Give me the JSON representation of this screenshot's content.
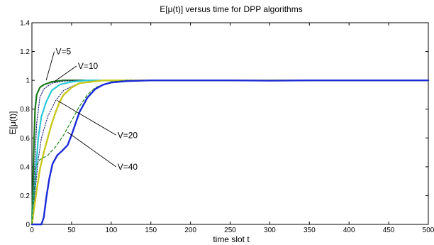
{
  "chart_data": {
    "type": "line",
    "title": "E[μ(t)] versus time for DPP algorithms",
    "xlabel": "time slot t",
    "ylabel": "E[μ(t)]",
    "xlim": [
      0,
      500
    ],
    "ylim": [
      0,
      1.4
    ],
    "xticks": [
      0,
      50,
      100,
      150,
      200,
      250,
      300,
      350,
      400,
      450,
      500
    ],
    "yticks": [
      0,
      0.2,
      0.4,
      0.6,
      0.8,
      1,
      1.2,
      1.4
    ],
    "grid": false,
    "legend": "none",
    "series": [
      {
        "color": "#1a7a1a",
        "style": "solid",
        "width": 2.2,
        "points": [
          [
            0,
            0
          ],
          [
            2,
            0.45
          ],
          [
            4,
            0.8
          ],
          [
            6,
            0.9
          ],
          [
            10,
            0.95
          ],
          [
            15,
            0.97
          ],
          [
            25,
            0.99
          ],
          [
            40,
            1.0
          ],
          [
            60,
            1.0
          ],
          [
            500,
            1.0
          ]
        ]
      },
      {
        "color": "#2a2a7a",
        "style": "dotted",
        "width": 1.2,
        "points": [
          [
            0,
            0
          ],
          [
            3,
            0.35
          ],
          [
            6,
            0.7
          ],
          [
            10,
            0.88
          ],
          [
            15,
            0.94
          ],
          [
            25,
            0.98
          ],
          [
            40,
            0.995
          ],
          [
            60,
            1.0
          ],
          [
            500,
            1.0
          ]
        ]
      },
      {
        "color": "#2ac8d8",
        "style": "solid",
        "width": 2.2,
        "points": [
          [
            0,
            0
          ],
          [
            4,
            0.3
          ],
          [
            8,
            0.6
          ],
          [
            12,
            0.75
          ],
          [
            18,
            0.85
          ],
          [
            25,
            0.93
          ],
          [
            35,
            0.97
          ],
          [
            50,
            0.99
          ],
          [
            70,
            1.0
          ],
          [
            500,
            1.0
          ]
        ]
      },
      {
        "color": "#3a3a8a",
        "style": "dotted",
        "width": 1.2,
        "points": [
          [
            0,
            0
          ],
          [
            8,
            0.45
          ],
          [
            12,
            0.6
          ],
          [
            20,
            0.75
          ],
          [
            30,
            0.86
          ],
          [
            40,
            0.93
          ],
          [
            55,
            0.97
          ],
          [
            70,
            0.99
          ],
          [
            90,
            1.0
          ],
          [
            500,
            1.0
          ]
        ]
      },
      {
        "color": "#c8c81e",
        "style": "solid",
        "width": 2.4,
        "points": [
          [
            0,
            0
          ],
          [
            5,
            0.2
          ],
          [
            10,
            0.38
          ],
          [
            15,
            0.5
          ],
          [
            20,
            0.6
          ],
          [
            25,
            0.7
          ],
          [
            30,
            0.78
          ],
          [
            35,
            0.85
          ],
          [
            40,
            0.9
          ],
          [
            50,
            0.95
          ],
          [
            60,
            0.98
          ],
          [
            75,
            0.99
          ],
          [
            90,
            1.0
          ],
          [
            500,
            1.0
          ]
        ]
      },
      {
        "color": "#228822",
        "style": "dashed",
        "width": 1.2,
        "points": [
          [
            0,
            0
          ],
          [
            5,
            0.4
          ],
          [
            10,
            0.45
          ],
          [
            20,
            0.48
          ],
          [
            30,
            0.54
          ],
          [
            40,
            0.62
          ],
          [
            50,
            0.72
          ],
          [
            60,
            0.82
          ],
          [
            70,
            0.9
          ],
          [
            80,
            0.95
          ],
          [
            90,
            0.97
          ],
          [
            100,
            0.99
          ],
          [
            120,
            1.0
          ],
          [
            500,
            1.0
          ]
        ]
      },
      {
        "color": "#1a2ad8",
        "style": "solid",
        "width": 2.4,
        "points": [
          [
            0,
            0
          ],
          [
            12,
            0
          ],
          [
            15,
            0.05
          ],
          [
            18,
            0.18
          ],
          [
            22,
            0.32
          ],
          [
            26,
            0.42
          ],
          [
            32,
            0.48
          ],
          [
            38,
            0.51
          ],
          [
            45,
            0.55
          ],
          [
            50,
            0.62
          ],
          [
            55,
            0.7
          ],
          [
            60,
            0.78
          ],
          [
            70,
            0.88
          ],
          [
            80,
            0.94
          ],
          [
            90,
            0.97
          ],
          [
            100,
            0.985
          ],
          [
            120,
            0.995
          ],
          [
            150,
            1.0
          ],
          [
            200,
            1.0
          ],
          [
            250,
            1.0
          ],
          [
            300,
            0.998
          ],
          [
            350,
            1.0
          ],
          [
            400,
            1.0
          ],
          [
            450,
            1.0
          ],
          [
            500,
            1.0
          ]
        ]
      }
    ],
    "annotations": [
      {
        "label": "V=5",
        "text_at": [
          30,
          1.18
        ],
        "arrow_to": [
          18,
          1.0
        ]
      },
      {
        "label": "V=10",
        "text_at": [
          58,
          1.08
        ],
        "arrow_to": [
          28,
          0.99
        ]
      },
      {
        "label": "V=20",
        "text_at": [
          108,
          0.6
        ],
        "arrow_to": [
          32,
          0.86
        ]
      },
      {
        "label": "V=40",
        "text_at": [
          108,
          0.38
        ],
        "arrow_to": [
          45,
          0.64
        ]
      }
    ]
  }
}
